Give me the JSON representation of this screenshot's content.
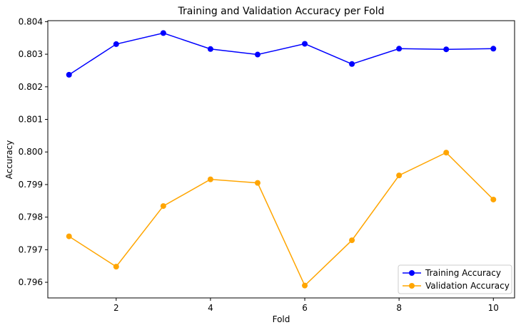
{
  "chart_data": {
    "type": "line",
    "title": "Training and Validation Accuracy per Fold",
    "xlabel": "Fold",
    "ylabel": "Accuracy",
    "x": [
      1,
      2,
      3,
      4,
      5,
      6,
      7,
      8,
      9,
      10
    ],
    "xlim": [
      0.55,
      10.45
    ],
    "ylim": [
      0.79552,
      0.80403
    ],
    "x_ticks": [
      2,
      4,
      6,
      8,
      10
    ],
    "x_tick_labels": [
      "2",
      "4",
      "6",
      "8",
      "10"
    ],
    "y_ticks": [
      0.796,
      0.797,
      0.798,
      0.799,
      0.8,
      0.801,
      0.802,
      0.803,
      0.804
    ],
    "y_tick_labels": [
      "0.796",
      "0.797",
      "0.798",
      "0.799",
      "0.800",
      "0.801",
      "0.802",
      "0.803",
      "0.804"
    ],
    "grid": false,
    "legend_position": "lower-right",
    "series": [
      {
        "name": "Training Accuracy",
        "color": "#0000ff",
        "marker": "circle",
        "values": [
          0.80237,
          0.80331,
          0.80365,
          0.80316,
          0.80299,
          0.80332,
          0.8027,
          0.80317,
          0.80315,
          0.80317
        ]
      },
      {
        "name": "Validation Accuracy",
        "color": "#ffa500",
        "marker": "circle",
        "values": [
          0.79741,
          0.79648,
          0.79834,
          0.79916,
          0.79905,
          0.7959,
          0.79729,
          0.79928,
          0.79998,
          0.79854
        ]
      }
    ]
  }
}
